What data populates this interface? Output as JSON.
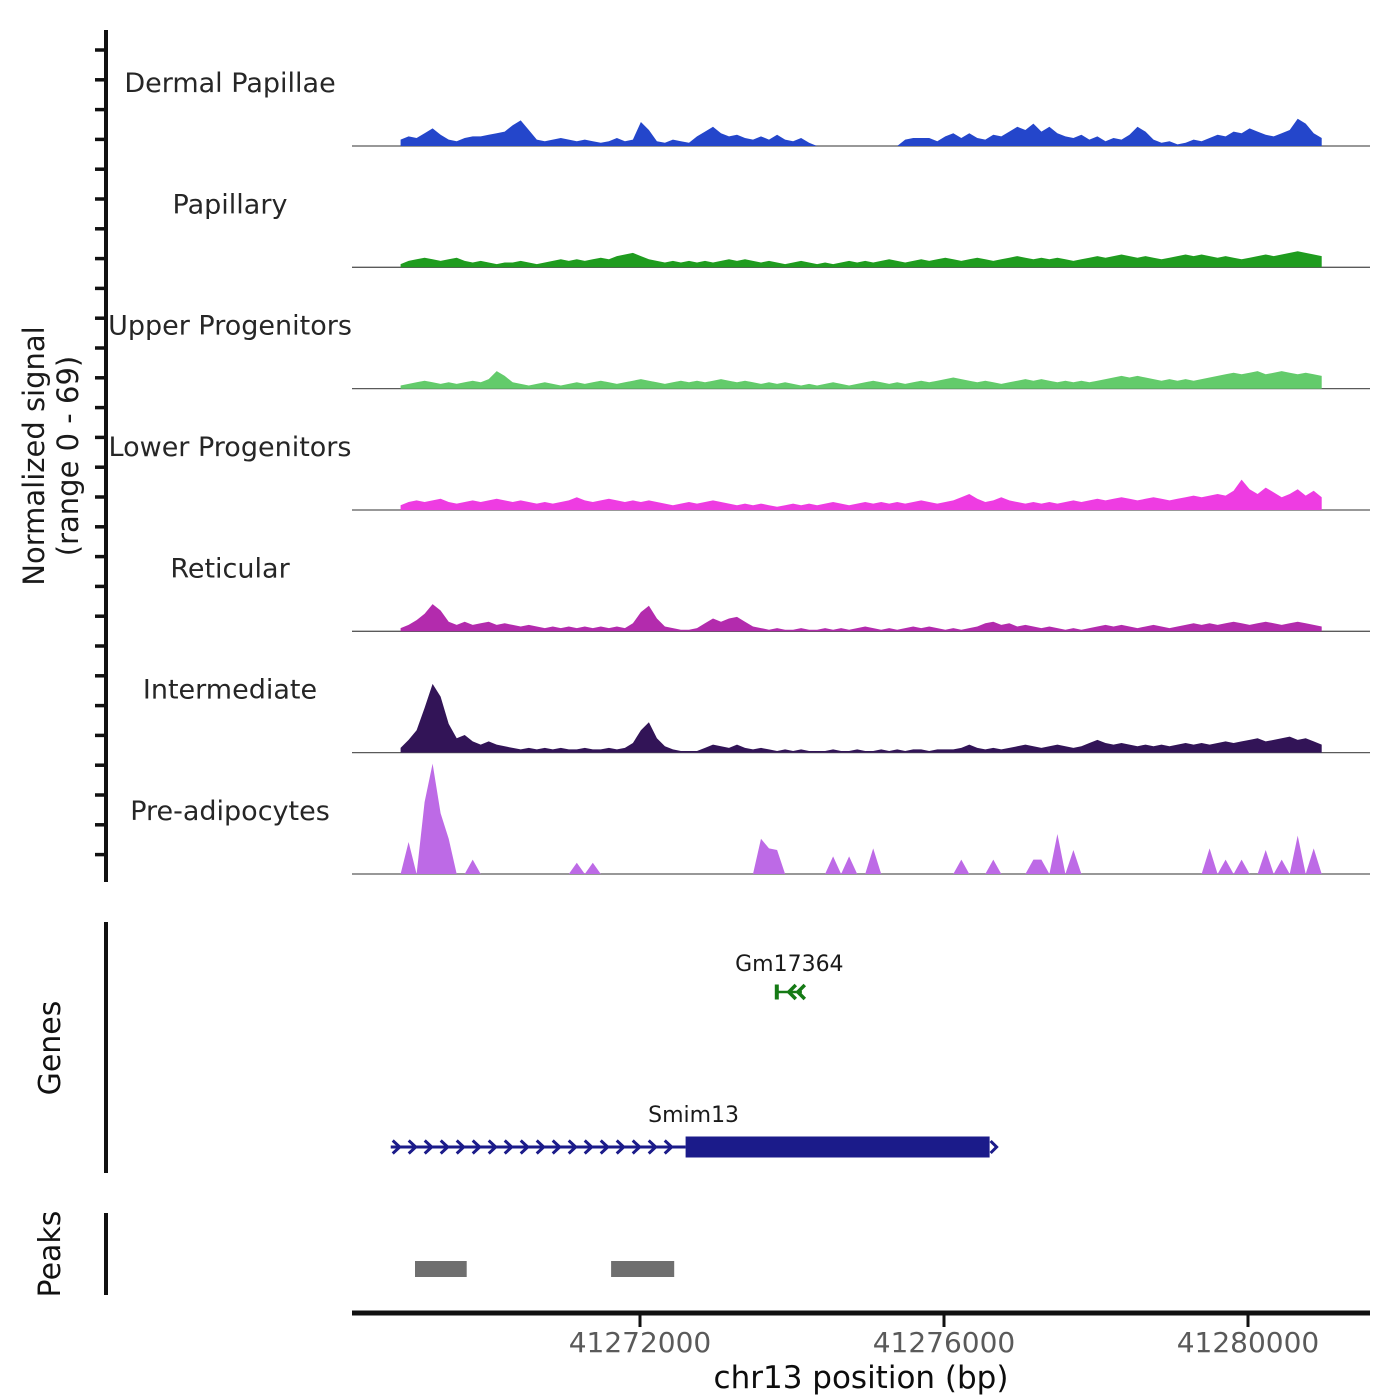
{
  "y_axis": {
    "label_line1": "Normalized signal",
    "label_line2": "(range 0 - 69)",
    "range_min": 0,
    "range_max": 69
  },
  "sections": {
    "genes_label": "Genes",
    "peaks_label": "Peaks"
  },
  "x_axis": {
    "title": "chr13 position (bp)",
    "ticks": [
      {
        "bp": 41272000,
        "label": "41272000"
      },
      {
        "bp": 41276000,
        "label": "41276000"
      },
      {
        "bp": 41280000,
        "label": "41280000"
      }
    ]
  },
  "chart_data": {
    "type": "area",
    "title": "",
    "chrom": "chr13",
    "xlabel": "chr13 position (bp)",
    "ylabel": "Normalized signal (range 0 - 69)",
    "signal_range": [
      0,
      69
    ],
    "window_bp_start": 41268850,
    "window_bp_end": 41280970,
    "grid": false,
    "tracks": [
      {
        "name": "Dermal Papillae",
        "color": "#2446cb",
        "values": [
          4,
          6,
          5,
          8,
          11,
          7,
          4,
          3,
          5,
          6,
          6,
          7,
          8,
          9,
          13,
          16,
          10,
          4,
          3,
          4,
          5,
          4,
          3,
          4,
          3,
          2,
          3,
          5,
          3,
          4,
          15,
          10,
          3,
          2,
          4,
          3,
          2,
          6,
          9,
          12,
          8,
          6,
          7,
          5,
          4,
          6,
          4,
          7,
          4,
          3,
          5,
          2,
          0,
          0,
          0,
          0,
          0,
          0,
          0,
          0,
          0,
          0,
          0,
          4,
          5,
          5,
          5,
          3,
          6,
          8,
          5,
          8,
          5,
          4,
          7,
          6,
          9,
          12,
          10,
          14,
          9,
          12,
          8,
          6,
          5,
          7,
          4,
          6,
          3,
          5,
          4,
          7,
          12,
          9,
          4,
          2,
          3,
          1,
          2,
          4,
          3,
          5,
          7,
          6,
          9,
          8,
          11,
          9,
          7,
          6,
          8,
          10,
          17,
          14,
          8,
          5
        ]
      },
      {
        "name": "Papillary",
        "color": "#1f9c1f",
        "values": [
          2,
          4,
          5,
          6,
          5,
          4,
          5,
          6,
          4,
          3,
          4,
          3,
          2,
          3,
          3,
          4,
          3,
          2,
          3,
          4,
          5,
          4,
          5,
          4,
          5,
          6,
          5,
          7,
          8,
          9,
          7,
          5,
          4,
          3,
          4,
          3,
          4,
          3,
          4,
          3,
          4,
          5,
          4,
          5,
          4,
          3,
          4,
          3,
          2,
          3,
          4,
          3,
          2,
          3,
          2,
          3,
          4,
          3,
          4,
          3,
          4,
          5,
          4,
          3,
          4,
          5,
          4,
          5,
          6,
          5,
          4,
          5,
          6,
          5,
          4,
          5,
          6,
          7,
          6,
          5,
          6,
          5,
          6,
          5,
          4,
          5,
          6,
          7,
          6,
          7,
          8,
          7,
          6,
          7,
          6,
          5,
          6,
          7,
          8,
          7,
          8,
          7,
          6,
          7,
          6,
          5,
          6,
          7,
          8,
          7,
          8,
          9,
          10,
          9,
          8,
          7
        ]
      },
      {
        "name": "Upper Progenitors",
        "color": "#63cb6b",
        "values": [
          2,
          3,
          4,
          5,
          4,
          3,
          4,
          3,
          4,
          5,
          4,
          6,
          11,
          8,
          4,
          3,
          2,
          3,
          4,
          3,
          2,
          3,
          4,
          3,
          4,
          5,
          4,
          3,
          4,
          5,
          6,
          5,
          4,
          3,
          4,
          5,
          4,
          5,
          4,
          5,
          6,
          5,
          4,
          5,
          4,
          3,
          4,
          3,
          4,
          3,
          2,
          3,
          2,
          3,
          4,
          3,
          2,
          3,
          4,
          5,
          4,
          3,
          4,
          3,
          4,
          5,
          4,
          5,
          6,
          7,
          6,
          5,
          4,
          5,
          4,
          3,
          4,
          5,
          6,
          5,
          6,
          5,
          4,
          5,
          4,
          5,
          4,
          5,
          6,
          7,
          8,
          7,
          8,
          7,
          6,
          5,
          6,
          5,
          6,
          5,
          6,
          7,
          8,
          9,
          10,
          9,
          10,
          11,
          9,
          10,
          11,
          10,
          9,
          10,
          9,
          8
        ]
      },
      {
        "name": "Lower Progenitors",
        "color": "#ee3ce2",
        "values": [
          3,
          5,
          6,
          5,
          6,
          7,
          5,
          4,
          5,
          6,
          5,
          6,
          7,
          6,
          5,
          6,
          5,
          4,
          5,
          4,
          5,
          6,
          8,
          6,
          5,
          6,
          7,
          6,
          5,
          6,
          5,
          6,
          5,
          4,
          3,
          4,
          5,
          4,
          5,
          6,
          5,
          4,
          3,
          4,
          3,
          4,
          3,
          2,
          3,
          4,
          3,
          4,
          3,
          4,
          5,
          4,
          3,
          4,
          5,
          4,
          5,
          4,
          5,
          4,
          5,
          6,
          5,
          4,
          5,
          6,
          8,
          10,
          7,
          5,
          6,
          8,
          6,
          5,
          4,
          5,
          4,
          5,
          4,
          5,
          6,
          5,
          6,
          7,
          6,
          7,
          8,
          7,
          6,
          7,
          8,
          7,
          6,
          7,
          8,
          9,
          8,
          9,
          10,
          9,
          12,
          19,
          13,
          10,
          14,
          11,
          8,
          10,
          13,
          9,
          12,
          8
        ]
      },
      {
        "name": "Reticular",
        "color": "#b32bad",
        "values": [
          2,
          4,
          7,
          11,
          17,
          13,
          6,
          4,
          6,
          4,
          5,
          6,
          4,
          5,
          4,
          3,
          4,
          3,
          2,
          3,
          2,
          3,
          2,
          3,
          2,
          3,
          2,
          3,
          2,
          5,
          12,
          16,
          8,
          3,
          2,
          1,
          1,
          2,
          5,
          8,
          6,
          8,
          9,
          6,
          3,
          2,
          1,
          2,
          1,
          1,
          2,
          1,
          1,
          2,
          1,
          2,
          1,
          2,
          3,
          2,
          1,
          2,
          1,
          2,
          3,
          2,
          3,
          2,
          1,
          2,
          1,
          2,
          3,
          5,
          6,
          4,
          5,
          3,
          4,
          3,
          2,
          3,
          2,
          1,
          2,
          1,
          2,
          3,
          4,
          3,
          4,
          3,
          2,
          3,
          4,
          3,
          2,
          3,
          4,
          5,
          4,
          5,
          4,
          5,
          6,
          5,
          4,
          5,
          6,
          5,
          4,
          5,
          6,
          5,
          4,
          3
        ]
      },
      {
        "name": "Intermediate",
        "color": "#321457",
        "values": [
          3,
          8,
          14,
          28,
          43,
          35,
          18,
          9,
          11,
          7,
          5,
          7,
          5,
          4,
          3,
          2,
          3,
          2,
          3,
          2,
          3,
          2,
          2,
          3,
          2,
          2,
          3,
          2,
          3,
          6,
          14,
          19,
          9,
          4,
          2,
          1,
          1,
          1,
          3,
          5,
          4,
          3,
          5,
          3,
          2,
          3,
          2,
          1,
          2,
          1,
          2,
          1,
          1,
          1,
          2,
          1,
          1,
          2,
          1,
          1,
          2,
          1,
          2,
          1,
          2,
          2,
          1,
          2,
          2,
          2,
          3,
          5,
          3,
          2,
          3,
          2,
          3,
          4,
          5,
          4,
          3,
          4,
          5,
          4,
          3,
          4,
          6,
          8,
          6,
          5,
          6,
          5,
          4,
          5,
          4,
          5,
          4,
          5,
          6,
          5,
          6,
          5,
          6,
          7,
          6,
          7,
          8,
          9,
          7,
          8,
          9,
          10,
          8,
          9,
          7,
          5
        ]
      },
      {
        "name": "Pre-adipocytes",
        "color": "#bd6ae6",
        "values": [
          0,
          20,
          0,
          45,
          69,
          38,
          22,
          0,
          0,
          9,
          0,
          0,
          0,
          0,
          0,
          0,
          0,
          0,
          0,
          0,
          0,
          0,
          7,
          0,
          7,
          0,
          0,
          0,
          0,
          0,
          0,
          0,
          0,
          0,
          0,
          0,
          0,
          0,
          0,
          0,
          0,
          0,
          0,
          0,
          0,
          22,
          16,
          15,
          0,
          0,
          0,
          0,
          0,
          0,
          11,
          0,
          11,
          0,
          0,
          16,
          0,
          0,
          0,
          0,
          0,
          0,
          0,
          0,
          0,
          0,
          9,
          0,
          0,
          0,
          9,
          0,
          0,
          0,
          0,
          9,
          9,
          0,
          25,
          0,
          15,
          0,
          0,
          0,
          0,
          0,
          0,
          0,
          0,
          0,
          0,
          0,
          0,
          0,
          0,
          0,
          0,
          16,
          0,
          9,
          0,
          9,
          0,
          0,
          15,
          0,
          9,
          0,
          24,
          0,
          16,
          0
        ]
      }
    ],
    "genes": [
      {
        "name": "Gm17364",
        "strand": "-",
        "color": "#157a15",
        "bp_start": 41273800,
        "bp_end": 41274130
      },
      {
        "name": "Smim13",
        "strand": "+",
        "color": "#1b1b8a",
        "bp_start": 41268720,
        "bp_end": 41276600,
        "thick_bp_start": 41272600
      }
    ],
    "peaks": [
      {
        "bp_start": 41269040,
        "bp_end": 41269720
      },
      {
        "bp_start": 41271620,
        "bp_end": 41272450
      }
    ],
    "peak_color": "#6f6f6f"
  }
}
